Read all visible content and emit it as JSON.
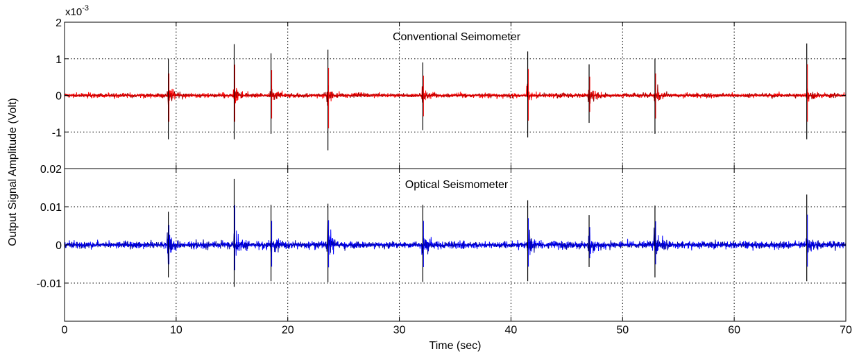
{
  "chart_data": [
    {
      "type": "line",
      "title": "Conventional Seimometer",
      "exponent_label": "x10",
      "exponent_value": "-3",
      "ylim": [
        -2,
        2
      ],
      "yticks": [
        -1,
        0,
        1,
        2
      ],
      "ytick_labels": [
        "-1",
        "0",
        "1",
        "2"
      ],
      "xlim": [
        0,
        70
      ],
      "grid": true,
      "color": "#ff0000",
      "spike_times": [
        9.3,
        15.2,
        18.5,
        23.6,
        32.1,
        41.5,
        47.0,
        52.9,
        66.5
      ],
      "spike_peaks": [
        1.0,
        1.4,
        1.15,
        1.25,
        0.9,
        1.2,
        0.85,
        1.0,
        1.42
      ],
      "spike_troughs": [
        -1.2,
        -1.2,
        -1.05,
        -1.5,
        -0.95,
        -1.15,
        -0.75,
        -1.05,
        -1.2
      ],
      "noise_amplitude": 0.08
    },
    {
      "type": "line",
      "title": "Optical Seismometer",
      "ylim": [
        -0.02,
        0.02
      ],
      "yticks": [
        -0.01,
        0,
        0.01,
        0.02
      ],
      "ytick_labels": [
        "-0.01",
        "0",
        "0.01",
        "0.02"
      ],
      "xlim": [
        0,
        70
      ],
      "xticks": [
        0,
        10,
        20,
        30,
        40,
        50,
        60,
        70
      ],
      "grid": true,
      "color": "#0000ff",
      "spike_times": [
        9.3,
        15.2,
        18.5,
        23.6,
        32.1,
        41.5,
        47.0,
        52.9,
        66.5
      ],
      "spike_peaks": [
        0.0087,
        0.0173,
        0.0105,
        0.0108,
        0.0105,
        0.0117,
        0.0078,
        0.0103,
        0.0132
      ],
      "spike_troughs": [
        -0.0085,
        -0.011,
        -0.0095,
        -0.0098,
        -0.0097,
        -0.0095,
        -0.0058,
        -0.0085,
        -0.0095
      ],
      "noise_amplitude": 0.0012
    }
  ],
  "axes": {
    "xlabel": "Time (sec)",
    "ylabel": "Output Signal Amplitude (Volt)",
    "xtick_labels": [
      "0",
      "10",
      "20",
      "30",
      "40",
      "50",
      "60",
      "70"
    ]
  }
}
